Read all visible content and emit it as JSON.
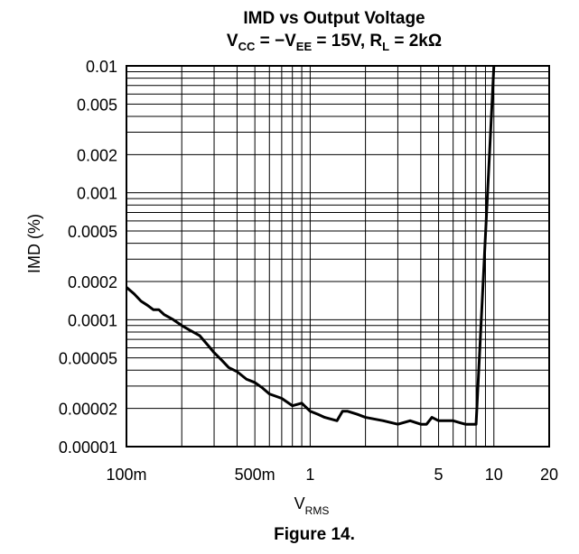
{
  "chart_data": {
    "type": "line",
    "title": "IMD vs Output Voltage",
    "subtitle": {
      "vcc_main": "V",
      "vcc_sub": "CC",
      "eq1": " = −V",
      "vee_sub": "EE",
      "eq2": " = 15V, R",
      "rl_sub": "L",
      "eq3": " = 2kΩ"
    },
    "ylabel": "IMD (%)",
    "xlabel": {
      "main": "V",
      "sub": "RMS"
    },
    "caption": "Figure 14.",
    "x_scale": "log",
    "y_scale": "log",
    "xlim": [
      0.1,
      20
    ],
    "ylim": [
      1e-05,
      0.01
    ],
    "grid": true,
    "x_ticks": [
      {
        "value": 0.1,
        "label": "100m"
      },
      {
        "value": 0.5,
        "label": "500m"
      },
      {
        "value": 1,
        "label": "1"
      },
      {
        "value": 5,
        "label": "5"
      },
      {
        "value": 10,
        "label": "10"
      },
      {
        "value": 20,
        "label": "20"
      }
    ],
    "y_ticks": [
      {
        "value": 0.01,
        "label": "0.01"
      },
      {
        "value": 0.005,
        "label": "0.005"
      },
      {
        "value": 0.002,
        "label": "0.002"
      },
      {
        "value": 0.001,
        "label": "0.001"
      },
      {
        "value": 0.0005,
        "label": "0.0005"
      },
      {
        "value": 0.0002,
        "label": "0.0002"
      },
      {
        "value": 0.0001,
        "label": "0.0001"
      },
      {
        "value": 5e-05,
        "label": "0.00005"
      },
      {
        "value": 2e-05,
        "label": "0.00002"
      },
      {
        "value": 1e-05,
        "label": "0.00001"
      }
    ],
    "series": [
      {
        "color": "#000000",
        "x": [
          0.1,
          0.11,
          0.12,
          0.13,
          0.14,
          0.15,
          0.16,
          0.18,
          0.2,
          0.22,
          0.25,
          0.28,
          0.3,
          0.33,
          0.36,
          0.4,
          0.45,
          0.5,
          0.55,
          0.6,
          0.7,
          0.8,
          0.9,
          1.0,
          1.1,
          1.2,
          1.4,
          1.5,
          1.6,
          1.8,
          2.0,
          2.5,
          3.0,
          3.5,
          4.0,
          4.3,
          4.6,
          5.0,
          5.5,
          6.0,
          7.0,
          8.0,
          10.0
        ],
        "y": [
          0.00018,
          0.00016,
          0.00014,
          0.00013,
          0.00012,
          0.00012,
          0.00011,
          0.0001,
          9e-05,
          8.3e-05,
          7.5e-05,
          6.2e-05,
          5.5e-05,
          4.8e-05,
          4.2e-05,
          3.9e-05,
          3.4e-05,
          3.2e-05,
          2.9e-05,
          2.6e-05,
          2.4e-05,
          2.1e-05,
          2.2e-05,
          1.9e-05,
          1.8e-05,
          1.7e-05,
          1.6e-05,
          1.9e-05,
          1.9e-05,
          1.8e-05,
          1.7e-05,
          1.6e-05,
          1.5e-05,
          1.6e-05,
          1.5e-05,
          1.5e-05,
          1.7e-05,
          1.6e-05,
          1.6e-05,
          1.6e-05,
          1.5e-05,
          1.5e-05,
          0.01
        ]
      }
    ]
  }
}
